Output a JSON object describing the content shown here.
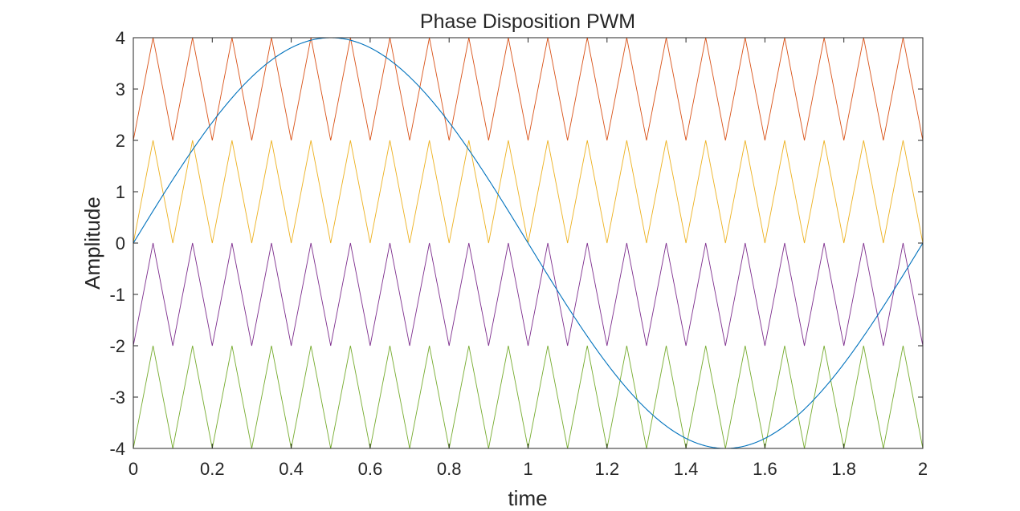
{
  "chart_data": {
    "type": "line",
    "title": "Phase Disposition PWM",
    "xlabel": "time",
    "ylabel": "Amplitude",
    "xlim": [
      0,
      2
    ],
    "ylim": [
      -4,
      4
    ],
    "x_ticks": [
      0,
      0.2,
      0.4,
      0.6,
      0.8,
      1,
      1.2,
      1.4,
      1.6,
      1.8,
      2
    ],
    "x_tick_labels": [
      "0",
      "0.2",
      "0.4",
      "0.6",
      "0.8",
      "1",
      "1.2",
      "1.4",
      "1.6",
      "1.8",
      "2"
    ],
    "y_ticks": [
      4,
      3,
      2,
      1,
      0,
      -1,
      -2,
      -3,
      -4
    ],
    "y_tick_labels": [
      "4",
      "3",
      "2",
      "1",
      "0",
      "-1",
      "-2",
      "-3",
      "-4"
    ],
    "grid": false,
    "legend": "none",
    "box": true,
    "series": [
      {
        "kind": "triangle",
        "color": "#D95319",
        "min": 2,
        "max": 4,
        "period": 0.1,
        "start_value": 2,
        "start_direction": "up"
      },
      {
        "kind": "triangle",
        "color": "#EDB120",
        "min": 0,
        "max": 2,
        "period": 0.1,
        "start_value": 0,
        "start_direction": "up"
      },
      {
        "kind": "triangle",
        "color": "#7E2F8E",
        "min": -2,
        "max": 0,
        "period": 0.1,
        "start_value": -2,
        "start_direction": "up"
      },
      {
        "kind": "triangle",
        "color": "#77AC30",
        "min": -4,
        "max": -2,
        "period": 0.1,
        "start_value": -4,
        "start_direction": "up"
      },
      {
        "kind": "sine",
        "color": "#0072BD",
        "amplitude": 4,
        "frequency": 0.5,
        "phase": 0
      }
    ]
  }
}
